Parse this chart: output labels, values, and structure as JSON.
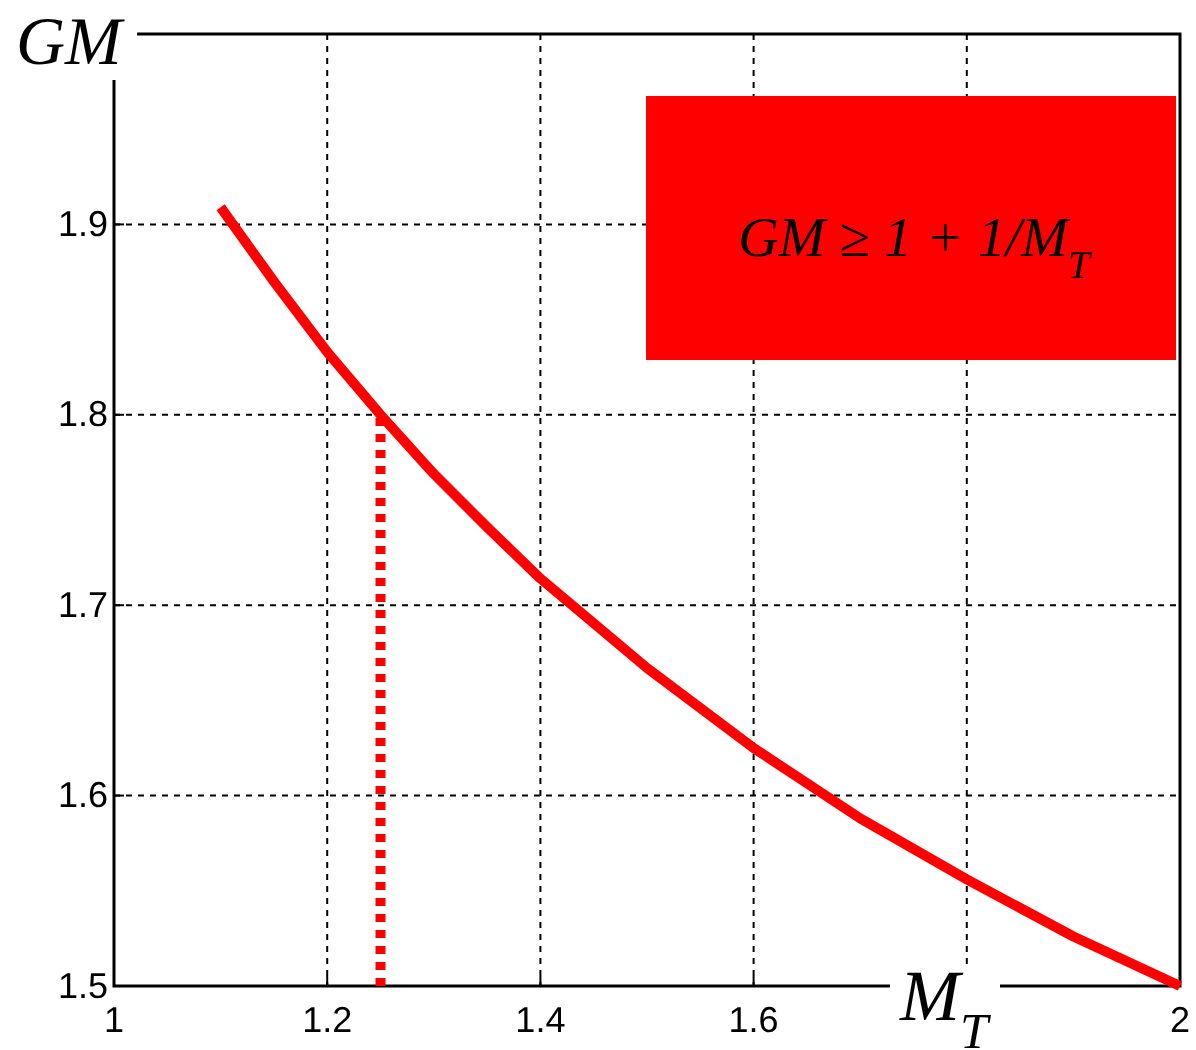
{
  "chart_data": {
    "type": "line",
    "xlabel": "M$_{T}$",
    "ylabel": "GM",
    "xlim": [
      1,
      2
    ],
    "ylim": [
      1.5,
      2.0
    ],
    "xticks": [
      1,
      1.2,
      1.4,
      1.6,
      {
        "value": 1.8,
        "label": null
      },
      2
    ],
    "yticks": [
      1.5,
      1.6,
      1.7,
      1.8,
      1.9
    ],
    "grid": true,
    "marker": "none",
    "series": [
      {
        "color": "#ff0000",
        "line_style": "solid",
        "x": [
          1.1,
          1.15,
          1.2,
          1.25,
          1.3,
          1.35,
          1.4,
          1.5,
          1.6,
          1.7,
          1.8,
          1.9,
          2.0
        ],
        "values": [
          1.909,
          1.87,
          1.833,
          1.8,
          1.769,
          1.741,
          1.714,
          1.667,
          1.625,
          1.588,
          1.556,
          1.526,
          1.5
        ]
      },
      {
        "color": "#ff0000",
        "line_style": "dotted",
        "x": [
          1.25,
          1.25
        ],
        "values": [
          1.5,
          1.8
        ]
      }
    ],
    "annotations": [
      "GM ≥ 1 + 1/M$_{T}$"
    ]
  }
}
